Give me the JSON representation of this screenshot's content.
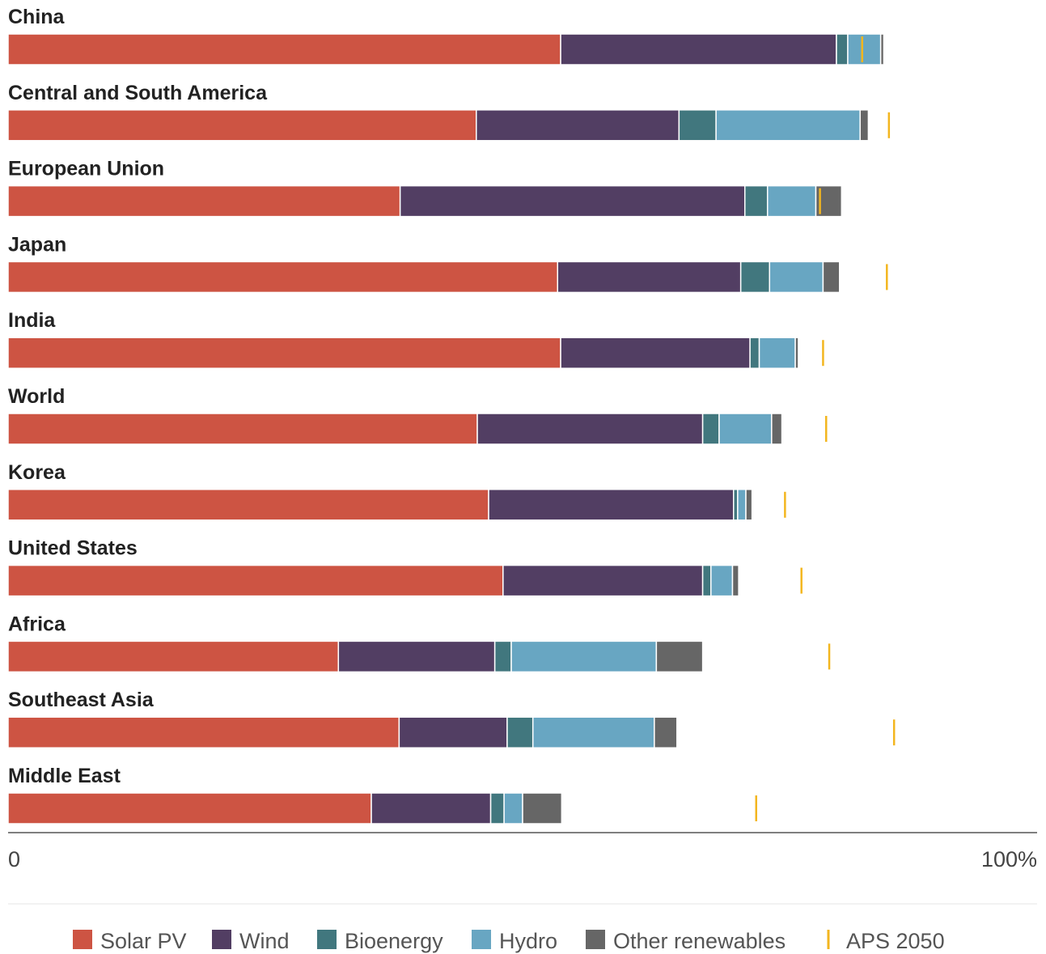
{
  "chart_data": {
    "type": "bar",
    "orientation": "horizontal",
    "stacked": true,
    "title": "",
    "xlabel": "",
    "ylabel": "",
    "xlim": [
      0,
      100
    ],
    "x_tick_labels": [
      "0",
      "100%"
    ],
    "grid": false,
    "legend_position": "bottom",
    "categories": [
      "China",
      "Central and South America",
      "European Union",
      "Japan",
      "India",
      "World",
      "Korea",
      "United States",
      "Africa",
      "Southeast Asia",
      "Middle East"
    ],
    "series": [
      {
        "name": "Solar PV",
        "color": "#cd5443",
        "values": [
          53.7,
          45.5,
          38.1,
          53.4,
          53.7,
          45.6,
          46.7,
          48.1,
          32.1,
          38.0,
          35.3
        ]
      },
      {
        "name": "Wind",
        "color": "#523e63",
        "values": [
          26.8,
          19.7,
          33.5,
          17.8,
          18.4,
          21.9,
          23.8,
          19.4,
          15.2,
          10.5,
          11.6
        ]
      },
      {
        "name": "Bioenergy",
        "color": "#41777e",
        "values": [
          1.1,
          3.6,
          2.2,
          2.8,
          0.9,
          1.6,
          0.4,
          0.8,
          1.6,
          2.5,
          1.3
        ]
      },
      {
        "name": "Hydro",
        "color": "#68a6c2",
        "values": [
          3.2,
          14.0,
          4.7,
          5.2,
          3.5,
          5.1,
          0.8,
          2.1,
          14.1,
          11.8,
          1.8
        ]
      },
      {
        "name": "Other renewables",
        "color": "#666666",
        "values": [
          0.3,
          0.8,
          2.5,
          1.6,
          0.3,
          1.0,
          0.6,
          0.6,
          4.5,
          2.2,
          3.8
        ]
      }
    ],
    "markers": {
      "name": "APS 2050",
      "color": "#f3b61f",
      "values": [
        83.0,
        85.6,
        78.9,
        85.4,
        79.2,
        79.5,
        75.5,
        77.1,
        79.8,
        86.1,
        72.7
      ]
    }
  }
}
